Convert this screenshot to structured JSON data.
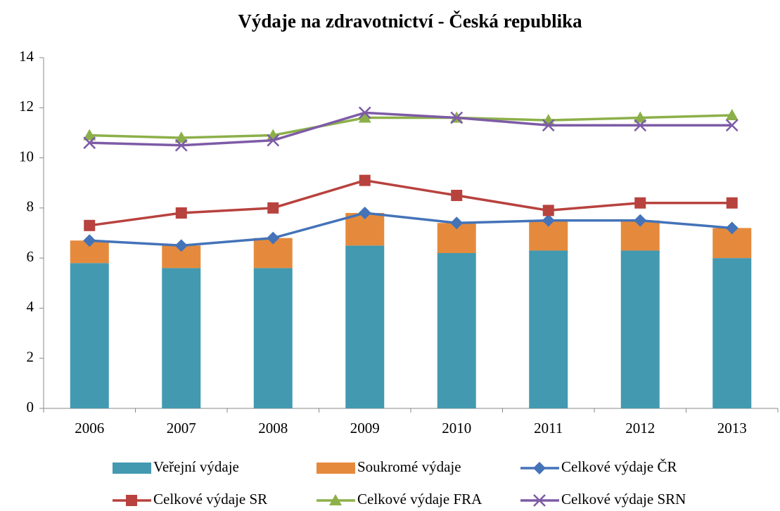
{
  "chart_data": {
    "type": "bar-line",
    "title": "Výdaje na zdravotnictví - Česká republika",
    "categories": [
      "2006",
      "2007",
      "2008",
      "2009",
      "2010",
      "2011",
      "2012",
      "2013"
    ],
    "ylim": [
      0,
      14
    ],
    "yticks": [
      0,
      2,
      4,
      6,
      8,
      10,
      12,
      14
    ],
    "grid": false,
    "series": [
      {
        "name": "Veřejní výdaje",
        "kind": "bar",
        "color": "#4299b0",
        "values": [
          5.8,
          5.6,
          5.6,
          6.5,
          6.2,
          6.3,
          6.3,
          6.0
        ]
      },
      {
        "name": "Soukromé výdaje",
        "kind": "bar",
        "color": "#e58a3c",
        "values": [
          0.9,
          0.9,
          1.2,
          1.3,
          1.2,
          1.2,
          1.2,
          1.2
        ]
      },
      {
        "name": "Celkové výdaje ČR",
        "kind": "line",
        "marker": "diamond",
        "color": "#4473b8",
        "values": [
          6.7,
          6.5,
          6.8,
          7.8,
          7.4,
          7.5,
          7.5,
          7.2
        ]
      },
      {
        "name": "Celkové výdaje SR",
        "kind": "line",
        "marker": "square",
        "color": "#b8423e",
        "values": [
          7.3,
          7.8,
          8.0,
          9.1,
          8.5,
          7.9,
          8.2,
          8.2
        ]
      },
      {
        "name": "Celkové výdaje FRA",
        "kind": "line",
        "marker": "triangle",
        "color": "#8cb049",
        "values": [
          10.9,
          10.8,
          10.9,
          11.6,
          11.6,
          11.5,
          11.6,
          11.7
        ]
      },
      {
        "name": "Celkové výdaje SRN",
        "kind": "line",
        "marker": "x",
        "color": "#7d5ba6",
        "values": [
          10.6,
          10.5,
          10.7,
          11.8,
          11.6,
          11.3,
          11.3,
          11.3
        ]
      }
    ]
  }
}
